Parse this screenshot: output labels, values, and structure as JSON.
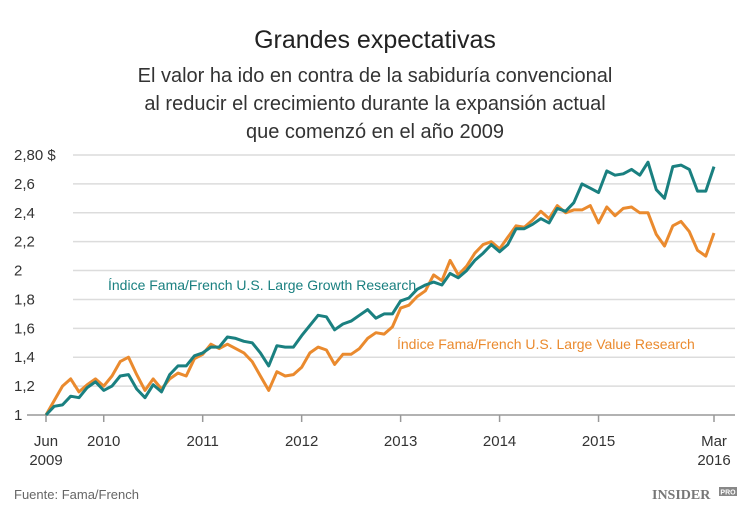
{
  "chart_data": {
    "type": "line",
    "title": "Grandes expectativas",
    "subtitle": [
      "El valor ha ido en contra de la sabiduría convencional",
      "al reducir el crecimiento durante la expansión actual",
      "que comenzó en el año 2009"
    ],
    "xlabel": "",
    "ylabel": "",
    "x_start": "2009-06",
    "x_end": "2016-03",
    "x_frequency": "monthly",
    "x_ticks": [
      {
        "date": "2009-06",
        "label": [
          "Jun",
          "2009"
        ]
      },
      {
        "date": "2010-01",
        "label": [
          "2010"
        ]
      },
      {
        "date": "2011-01",
        "label": [
          "2011"
        ]
      },
      {
        "date": "2012-01",
        "label": [
          "2012"
        ]
      },
      {
        "date": "2013-01",
        "label": [
          "2013"
        ]
      },
      {
        "date": "2014-01",
        "label": [
          "2014"
        ]
      },
      {
        "date": "2015-01",
        "label": [
          "2015"
        ]
      },
      {
        "date": "2016-03",
        "label": [
          "Mar",
          "2016"
        ]
      }
    ],
    "ylim": [
      1,
      2.8
    ],
    "y_ticks": [
      {
        "value": 1,
        "label": "1"
      },
      {
        "value": 1.2,
        "label": "1,2"
      },
      {
        "value": 1.4,
        "label": "1,4"
      },
      {
        "value": 1.6,
        "label": "1,6"
      },
      {
        "value": 1.8,
        "label": "1,8"
      },
      {
        "value": 2,
        "label": "2"
      },
      {
        "value": 2.2,
        "label": "2,2"
      },
      {
        "value": 2.4,
        "label": "2,4"
      },
      {
        "value": 2.6,
        "label": "2,6"
      },
      {
        "value": 2.8,
        "label": "2,80 $"
      }
    ],
    "grid": true,
    "series": [
      {
        "name": "Índice Fama/French U.S. Large Growth Research",
        "color": "#1a8080",
        "values": [
          1.0,
          1.06,
          1.07,
          1.13,
          1.12,
          1.19,
          1.23,
          1.17,
          1.2,
          1.27,
          1.28,
          1.18,
          1.12,
          1.21,
          1.16,
          1.28,
          1.34,
          1.34,
          1.41,
          1.43,
          1.47,
          1.47,
          1.54,
          1.53,
          1.51,
          1.5,
          1.43,
          1.34,
          1.48,
          1.47,
          1.47,
          1.55,
          1.62,
          1.69,
          1.68,
          1.59,
          1.63,
          1.65,
          1.69,
          1.73,
          1.67,
          1.7,
          1.7,
          1.79,
          1.81,
          1.87,
          1.9,
          1.92,
          1.9,
          1.98,
          1.95,
          2.0,
          2.07,
          2.12,
          2.18,
          2.13,
          2.18,
          2.29,
          2.29,
          2.32,
          2.36,
          2.33,
          2.43,
          2.41,
          2.47,
          2.6,
          2.57,
          2.54,
          2.69,
          2.66,
          2.67,
          2.7,
          2.66,
          2.75,
          2.56,
          2.5,
          2.72,
          2.73,
          2.7,
          2.55,
          2.55,
          2.72
        ]
      },
      {
        "name": "Índice Fama/French U.S. Large Value Research",
        "color": "#ea8a2e",
        "values": [
          1.0,
          1.1,
          1.2,
          1.25,
          1.16,
          1.21,
          1.25,
          1.2,
          1.27,
          1.37,
          1.4,
          1.28,
          1.17,
          1.25,
          1.18,
          1.25,
          1.29,
          1.27,
          1.39,
          1.42,
          1.49,
          1.46,
          1.49,
          1.46,
          1.43,
          1.37,
          1.27,
          1.17,
          1.3,
          1.27,
          1.28,
          1.33,
          1.43,
          1.47,
          1.45,
          1.35,
          1.42,
          1.42,
          1.46,
          1.53,
          1.57,
          1.56,
          1.61,
          1.74,
          1.76,
          1.82,
          1.86,
          1.97,
          1.93,
          2.07,
          1.97,
          2.03,
          2.12,
          2.18,
          2.2,
          2.15,
          2.23,
          2.31,
          2.3,
          2.35,
          2.41,
          2.36,
          2.45,
          2.4,
          2.42,
          2.42,
          2.45,
          2.33,
          2.44,
          2.38,
          2.43,
          2.44,
          2.4,
          2.4,
          2.25,
          2.17,
          2.31,
          2.34,
          2.27,
          2.14,
          2.1,
          2.26
        ]
      }
    ],
    "legend": "inline labels"
  },
  "footer": {
    "source": "Fuente: Fama/French",
    "logo": "INSIDER",
    "logo_badge": "PRO"
  }
}
